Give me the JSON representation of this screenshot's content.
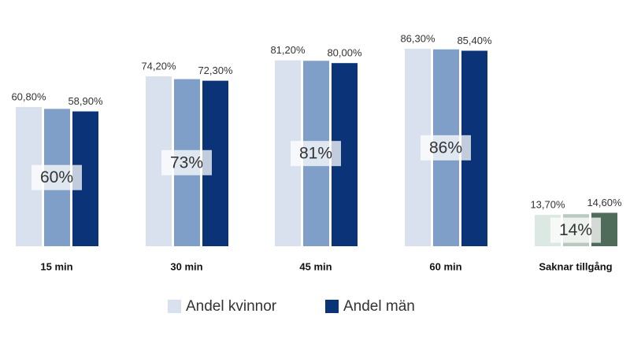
{
  "chart_data": {
    "type": "bar",
    "categories": [
      "15 min",
      "30 min",
      "45 min",
      "60 min",
      "Saknar tillgång"
    ],
    "ylim": [
      0,
      100
    ],
    "series": [
      {
        "name": "Andel kvinnor",
        "colors": [
          "#d9e1ee",
          "#d9e1ee",
          "#d9e1ee",
          "#d9e1ee",
          "#dce8e2"
        ],
        "values": [
          60.8,
          74.2,
          81.2,
          86.3,
          13.7
        ],
        "value_labels": [
          "60,80%",
          "74,20%",
          "81,20%",
          "86,30%",
          "13,70%"
        ]
      },
      {
        "colors": [
          "#7f9fc8",
          "#7f9fc8",
          "#7f9fc8",
          "#7f9fc8",
          "#b9c9c0"
        ],
        "values": [
          60,
          73,
          81,
          86,
          14
        ],
        "value_labels": [
          "60%",
          "73%",
          "81%",
          "86%",
          "14%"
        ]
      },
      {
        "name": "Andel män",
        "colors": [
          "#0b3478",
          "#0b3478",
          "#0b3478",
          "#0b3478",
          "#4f6b5a"
        ],
        "values": [
          58.9,
          72.3,
          80.0,
          85.4,
          14.6
        ],
        "value_labels": [
          "58,90%",
          "72,30%",
          "80,00%",
          "85,40%",
          "14,60%"
        ]
      }
    ]
  }
}
